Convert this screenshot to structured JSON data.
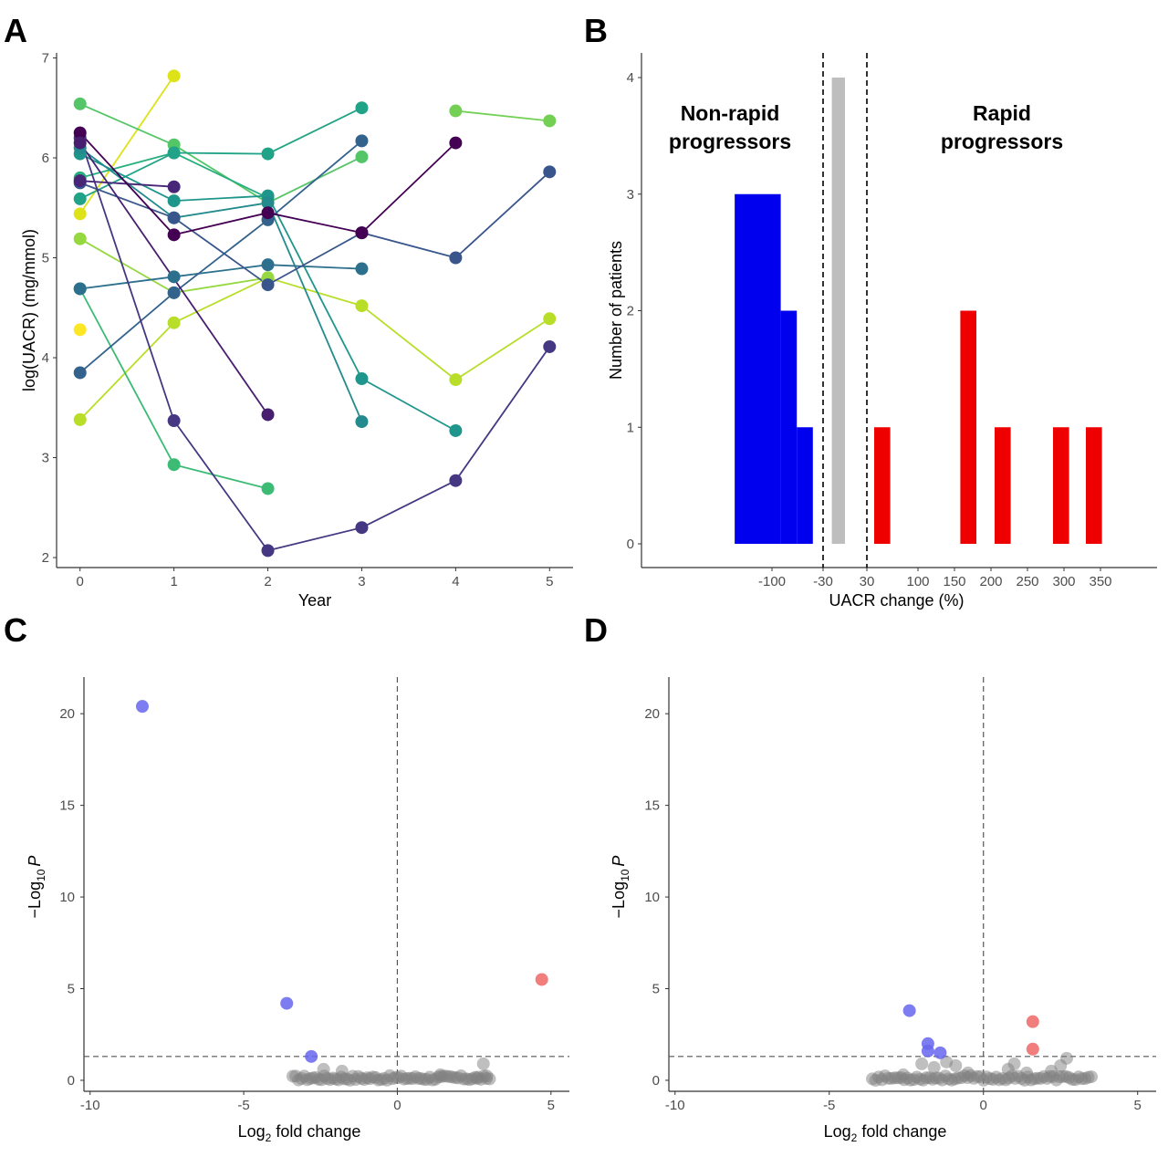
{
  "panels": {
    "A": "A",
    "B": "B",
    "C": "C",
    "D": "D"
  },
  "chart_data": [
    {
      "id": "A",
      "type": "line",
      "xlabel": "Year",
      "ylabel": "log(UACR) (mg/mmol)",
      "xlim": [
        -0.25,
        5.25
      ],
      "ylim": [
        1.9,
        7.05
      ],
      "xticks": [
        0,
        1,
        2,
        3,
        4,
        5
      ],
      "yticks": [
        2,
        3,
        4,
        5,
        6,
        7
      ],
      "grid": false,
      "series": [
        {
          "color": "#fde725",
          "points": [
            [
              0,
              4.28
            ]
          ]
        },
        {
          "color": "#dde318",
          "points": [
            [
              0,
              5.44
            ],
            [
              1,
              6.82
            ]
          ]
        },
        {
          "color": "#b8de29",
          "points": [
            [
              0,
              3.38
            ],
            [
              1,
              4.35
            ],
            [
              2,
              4.8
            ],
            [
              3,
              4.52
            ],
            [
              4,
              3.78
            ],
            [
              5,
              4.39
            ]
          ]
        },
        {
          "color": "#95d840",
          "points": [
            [
              0,
              5.19
            ],
            [
              1,
              4.65
            ],
            [
              2,
              4.8
            ]
          ]
        },
        {
          "color": "#73d055",
          "points": [
            [
              4,
              6.47
            ],
            [
              5,
              6.37
            ]
          ]
        },
        {
          "color": "#55c667",
          "points": [
            [
              0,
              6.54
            ],
            [
              1,
              6.13
            ],
            [
              2,
              5.55
            ],
            [
              3,
              6.01
            ]
          ]
        },
        {
          "color": "#3cbb75",
          "points": [
            [
              0,
              4.69
            ],
            [
              1,
              2.93
            ],
            [
              2,
              2.69
            ]
          ]
        },
        {
          "color": "#29af7f",
          "points": [
            [
              0,
              5.8
            ],
            [
              1,
              6.05
            ],
            [
              2,
              5.6
            ]
          ]
        },
        {
          "color": "#20a387",
          "points": [
            [
              0,
              5.59
            ],
            [
              1,
              6.05
            ],
            [
              2,
              6.04
            ],
            [
              3,
              6.5
            ]
          ]
        },
        {
          "color": "#1f968b",
          "points": [
            [
              0,
              6.04
            ],
            [
              1,
              5.57
            ],
            [
              2,
              5.62
            ],
            [
              3,
              3.79
            ],
            [
              4,
              3.27
            ]
          ]
        },
        {
          "color": "#238a8d",
          "points": [
            [
              0,
              6.1
            ],
            [
              1,
              5.4
            ],
            [
              2,
              5.55
            ],
            [
              3,
              3.36
            ]
          ]
        },
        {
          "color": "#2d708e",
          "points": [
            [
              0,
              4.69
            ],
            [
              1,
              4.81
            ],
            [
              2,
              4.93
            ],
            [
              3,
              4.89
            ]
          ]
        },
        {
          "color": "#33638d",
          "points": [
            [
              0,
              3.85
            ],
            [
              1,
              4.65
            ],
            [
              2,
              5.38
            ],
            [
              3,
              6.17
            ]
          ]
        },
        {
          "color": "#39568c",
          "points": [
            [
              0,
              5.75
            ],
            [
              1,
              5.4
            ],
            [
              2,
              4.73
            ],
            [
              3,
              5.25
            ],
            [
              4,
              5.0
            ],
            [
              5,
              5.86
            ]
          ]
        },
        {
          "color": "#453781",
          "points": [
            [
              0,
              6.2
            ],
            [
              1,
              3.37
            ],
            [
              2,
              2.07
            ],
            [
              3,
              2.3
            ],
            [
              4,
              2.77
            ],
            [
              5,
              4.11
            ]
          ]
        },
        {
          "color": "#482677",
          "points": [
            [
              0,
              5.77
            ],
            [
              1,
              5.71
            ]
          ]
        },
        {
          "color": "#440154",
          "points": [
            [
              0,
              6.25
            ],
            [
              1,
              5.23
            ],
            [
              2,
              5.45
            ],
            [
              3,
              5.25
            ],
            [
              4,
              6.15
            ]
          ]
        },
        {
          "color": "#481f70",
          "points": [
            [
              0,
              6.15
            ],
            [
              2,
              3.43
            ]
          ]
        }
      ]
    },
    {
      "id": "B",
      "type": "bar",
      "xlabel": "UACR change (%)",
      "ylabel": "Number of patients",
      "ylim": [
        0,
        4
      ],
      "yticks": [
        0,
        1,
        2,
        3,
        4
      ],
      "xticks": [
        "-100",
        "-30",
        "30",
        "100",
        "150",
        "200",
        "250",
        "300",
        "350"
      ],
      "thresholds": [
        "-30",
        "30"
      ],
      "annotations": [
        {
          "lines": [
            "Non-rapid",
            "progressors"
          ]
        },
        {
          "lines": [
            "Rapid",
            "progressors"
          ]
        }
      ],
      "bars": [
        {
          "from": -110,
          "to": -88,
          "count": 3,
          "color": "#0000ee"
        },
        {
          "from": -88,
          "to": -66,
          "count": 2,
          "color": "#0000ee"
        },
        {
          "from": -66,
          "to": -44,
          "count": 1,
          "color": "#0000ee"
        },
        {
          "from": -18,
          "to": 0,
          "count": 4,
          "color": "#bebebe"
        },
        {
          "from": 40,
          "to": 62,
          "count": 1,
          "color": "#ee0000"
        },
        {
          "from": 158,
          "to": 180,
          "count": 2,
          "color": "#ee0000"
        },
        {
          "from": 205,
          "to": 227,
          "count": 1,
          "color": "#ee0000"
        },
        {
          "from": 285,
          "to": 307,
          "count": 1,
          "color": "#ee0000"
        },
        {
          "from": 330,
          "to": 352,
          "count": 1,
          "color": "#ee0000"
        }
      ]
    },
    {
      "id": "C",
      "type": "scatter",
      "xlabel_main": "Log",
      "xlabel_sub": "2",
      "xlabel_rest": " fold change",
      "ylabel_main": "−Log",
      "ylabel_sub": "10",
      "ylabel_italic": "P",
      "xlim": [
        -10.2,
        5.6
      ],
      "ylim": [
        -0.6,
        22
      ],
      "xticks": [
        -10,
        -5,
        0,
        5
      ],
      "yticks": [
        0,
        5,
        10,
        15,
        20
      ],
      "vline": 0,
      "hline": 1.3,
      "points": [
        {
          "x": -8.3,
          "y": 20.4,
          "color": "#6666ee"
        },
        {
          "x": -3.6,
          "y": 4.2,
          "color": "#6666ee"
        },
        {
          "x": -2.8,
          "y": 1.3,
          "color": "#6666ee"
        },
        {
          "x": 4.7,
          "y": 5.5,
          "color": "#ee6666"
        }
      ],
      "nonsig_range": [
        -3.4,
        3.0
      ],
      "nonsig_color": "#7f7f7f",
      "nonsig_extra": [
        {
          "x": 2.8,
          "y": 0.9
        },
        {
          "x": 2.6,
          "y": 0.1
        },
        {
          "x": 2.9,
          "y": 0.1
        },
        {
          "x": -2.4,
          "y": 0.6
        },
        {
          "x": -1.8,
          "y": 0.5
        },
        {
          "x": 1.4,
          "y": 0.3
        }
      ]
    },
    {
      "id": "D",
      "type": "scatter",
      "xlabel_main": "Log",
      "xlabel_sub": "2",
      "xlabel_rest": " fold change",
      "ylabel_main": "−Log",
      "ylabel_sub": "10",
      "ylabel_italic": "P",
      "xlim": [
        -10.2,
        5.6
      ],
      "ylim": [
        -0.6,
        22
      ],
      "xticks": [
        -10,
        -5,
        0,
        5
      ],
      "yticks": [
        0,
        5,
        10,
        15,
        20
      ],
      "vline": 0,
      "hline": 1.3,
      "points": [
        {
          "x": -2.4,
          "y": 3.8,
          "color": "#6666ee"
        },
        {
          "x": -1.8,
          "y": 2.0,
          "color": "#6666ee"
        },
        {
          "x": -1.8,
          "y": 1.6,
          "color": "#6666ee"
        },
        {
          "x": -1.4,
          "y": 1.5,
          "color": "#6666ee"
        },
        {
          "x": 1.6,
          "y": 3.2,
          "color": "#ee6666"
        },
        {
          "x": 1.6,
          "y": 1.7,
          "color": "#ee6666"
        }
      ],
      "nonsig_range": [
        -3.6,
        3.5
      ],
      "nonsig_color": "#7f7f7f",
      "nonsig_extra": [
        {
          "x": 2.7,
          "y": 1.2
        },
        {
          "x": 2.5,
          "y": 0.8
        },
        {
          "x": 1.0,
          "y": 0.9
        },
        {
          "x": 0.8,
          "y": 0.6
        },
        {
          "x": -0.9,
          "y": 0.8
        },
        {
          "x": -1.2,
          "y": 1.0
        },
        {
          "x": -2.0,
          "y": 0.9
        },
        {
          "x": -1.6,
          "y": 0.7
        },
        {
          "x": 2.2,
          "y": 0.5
        },
        {
          "x": 1.4,
          "y": 0.4
        },
        {
          "x": -0.5,
          "y": 0.4
        },
        {
          "x": -2.6,
          "y": 0.3
        }
      ]
    }
  ]
}
